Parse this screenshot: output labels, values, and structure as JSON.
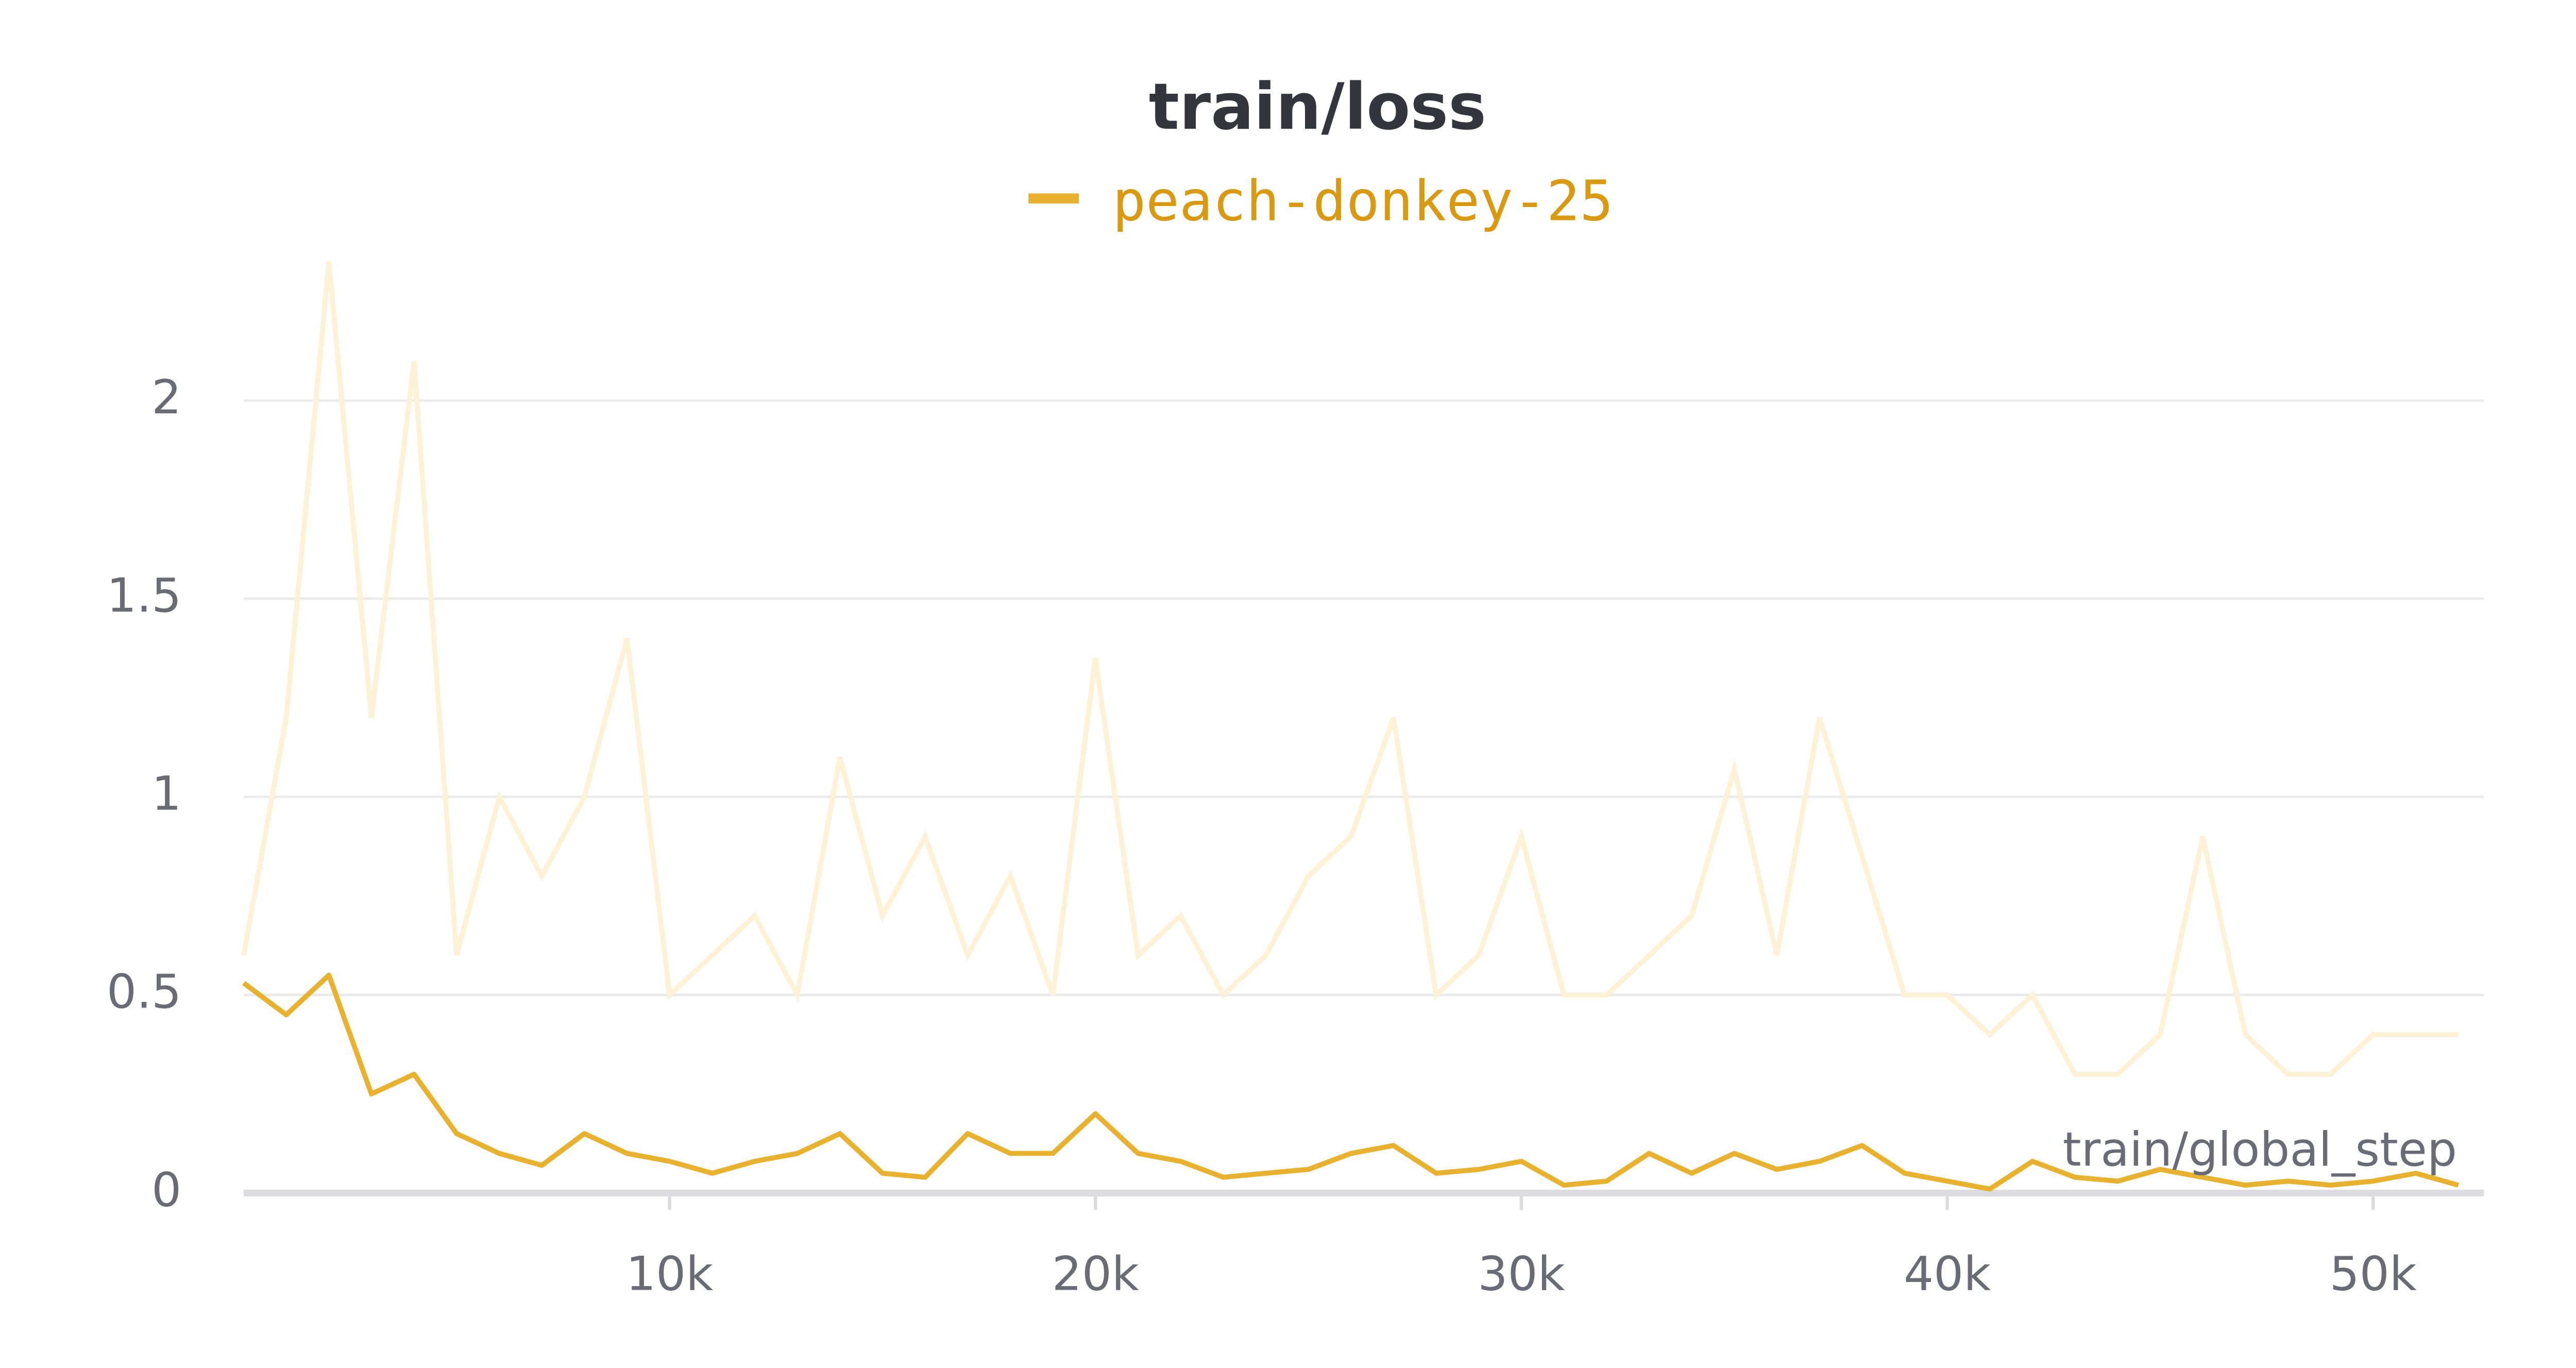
{
  "chart_data": {
    "type": "line",
    "title": "train/loss",
    "x_label": "train/global_step",
    "x": [
      0,
      1000,
      2000,
      3000,
      4000,
      5000,
      6000,
      7000,
      8000,
      9000,
      10000,
      11000,
      12000,
      13000,
      14000,
      15000,
      16000,
      17000,
      18000,
      19000,
      20000,
      21000,
      22000,
      23000,
      24000,
      25000,
      26000,
      27000,
      28000,
      29000,
      30000,
      31000,
      32000,
      33000,
      34000,
      35000,
      36000,
      37000,
      38000,
      39000,
      40000,
      41000,
      42000,
      43000,
      44000,
      45000,
      46000,
      47000,
      48000,
      49000,
      50000,
      51000,
      52000
    ],
    "series": [
      {
        "name": "peach-donkey-25",
        "color": "#e8b12e",
        "raw_color": "#fdf1d6",
        "values": [
          0.53,
          0.45,
          0.55,
          0.25,
          0.3,
          0.15,
          0.1,
          0.07,
          0.15,
          0.1,
          0.08,
          0.05,
          0.08,
          0.1,
          0.15,
          0.05,
          0.04,
          0.15,
          0.1,
          0.1,
          0.2,
          0.1,
          0.08,
          0.04,
          0.05,
          0.06,
          0.1,
          0.12,
          0.05,
          0.06,
          0.08,
          0.02,
          0.03,
          0.1,
          0.05,
          0.1,
          0.06,
          0.08,
          0.12,
          0.05,
          0.03,
          0.01,
          0.08,
          0.04,
          0.03,
          0.06,
          0.04,
          0.02,
          0.03,
          0.02,
          0.03,
          0.05,
          0.02
        ],
        "raw_values": [
          0.6,
          1.2,
          2.35,
          1.2,
          2.1,
          0.6,
          1.0,
          0.8,
          1.0,
          1.4,
          0.5,
          0.6,
          0.7,
          0.5,
          1.1,
          0.7,
          0.9,
          0.6,
          0.8,
          0.5,
          1.35,
          0.6,
          0.7,
          0.5,
          0.6,
          0.8,
          0.9,
          1.2,
          0.5,
          0.6,
          0.9,
          0.5,
          0.5,
          0.6,
          0.7,
          1.07,
          0.6,
          1.2,
          0.85,
          0.5,
          0.5,
          0.4,
          0.5,
          0.3,
          0.3,
          0.4,
          0.9,
          0.4,
          0.3,
          0.3,
          0.4,
          0.4,
          0.4
        ]
      }
    ],
    "xlim": [
      0,
      52600
    ],
    "ylim": [
      0,
      2.4
    ],
    "xticks": [
      {
        "value": 10000,
        "label": "10k"
      },
      {
        "value": 20000,
        "label": "20k"
      },
      {
        "value": 30000,
        "label": "30k"
      },
      {
        "value": 40000,
        "label": "40k"
      },
      {
        "value": 50000,
        "label": "50k"
      }
    ],
    "yticks": [
      0,
      0.5,
      1,
      1.5,
      2
    ],
    "grid": true
  }
}
